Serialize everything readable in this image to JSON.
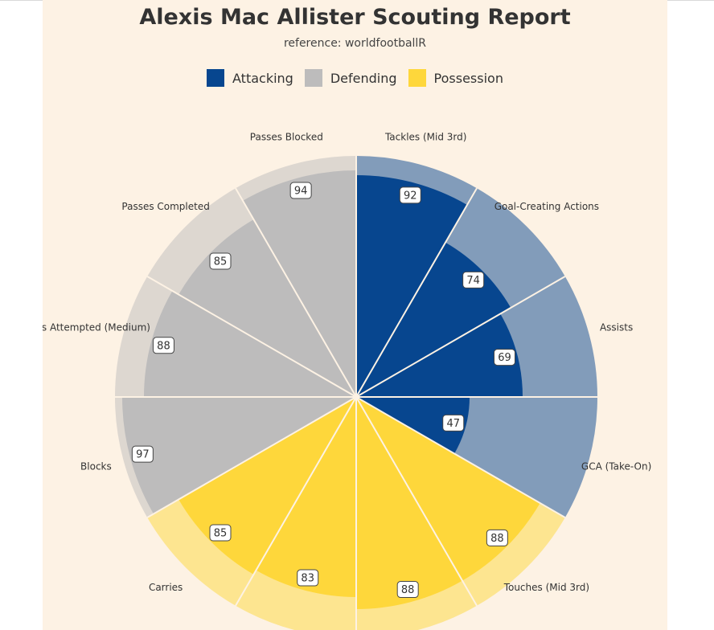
{
  "title": "Alexis Mac Allister Scouting Report",
  "subtitle": "reference: worldfootballR",
  "colors": {
    "background": "#fdf2e4",
    "Attacking": "#07468f",
    "Defending": "#bdbcbc",
    "Possession": "#fed73b"
  },
  "legend": [
    {
      "name": "Attacking",
      "color": "#07468f"
    },
    {
      "name": "Defending",
      "color": "#bdbcbc"
    },
    {
      "name": "Possession",
      "color": "#fed73b"
    }
  ],
  "chart_data": {
    "type": "polar-bar",
    "title": "Alexis Mac Allister Scouting Report",
    "subtitle": "reference: worldfootballR",
    "ylim": [
      0,
      100
    ],
    "categories": [
      {
        "label": "Tackles (Mid 3rd)",
        "value": 92,
        "group": "Attacking"
      },
      {
        "label": "Goal-Creating Actions",
        "value": 74,
        "group": "Attacking"
      },
      {
        "label": "Assists",
        "value": 69,
        "group": "Attacking"
      },
      {
        "label": "GCA (Take-On)",
        "value": 47,
        "group": "Attacking"
      },
      {
        "label": "Touches (Mid 3rd)",
        "value": 88,
        "group": "Possession"
      },
      {
        "label": "",
        "value": 88,
        "group": "Possession"
      },
      {
        "label": "",
        "value": 83,
        "group": "Possession"
      },
      {
        "label": "Carries",
        "value": 85,
        "group": "Possession"
      },
      {
        "label": "Blocks",
        "value": 97,
        "group": "Defending"
      },
      {
        "label": "s Attempted (Medium)",
        "value": 88,
        "group": "Defending"
      },
      {
        "label": "Passes Completed",
        "value": 85,
        "group": "Defending"
      },
      {
        "label": "Passes Blocked",
        "value": 94,
        "group": "Defending"
      }
    ]
  }
}
